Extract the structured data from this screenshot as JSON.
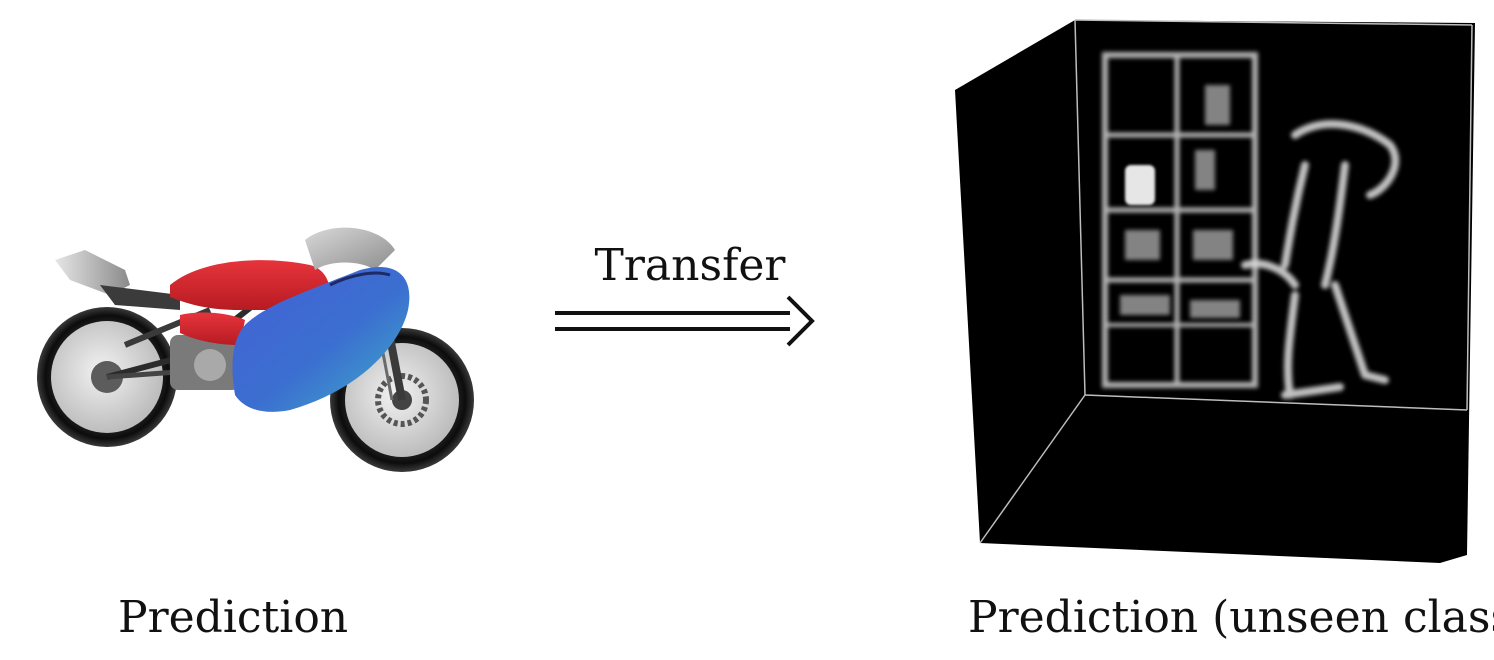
{
  "left_panel": {
    "caption": "Prediction",
    "image_icon": "motorcycle-render"
  },
  "arrow": {
    "label": "Transfer",
    "icon": "double-arrow-right"
  },
  "right_panel": {
    "caption": "Prediction (unseen class)",
    "image_icon": "volumetric-3d-box-render"
  },
  "colors": {
    "background": "#ffffff",
    "volume_bg": "#000000",
    "moto_red": "#d2232a",
    "moto_blue": "#3a5fd0",
    "moto_cyan": "#3fa7c9"
  }
}
